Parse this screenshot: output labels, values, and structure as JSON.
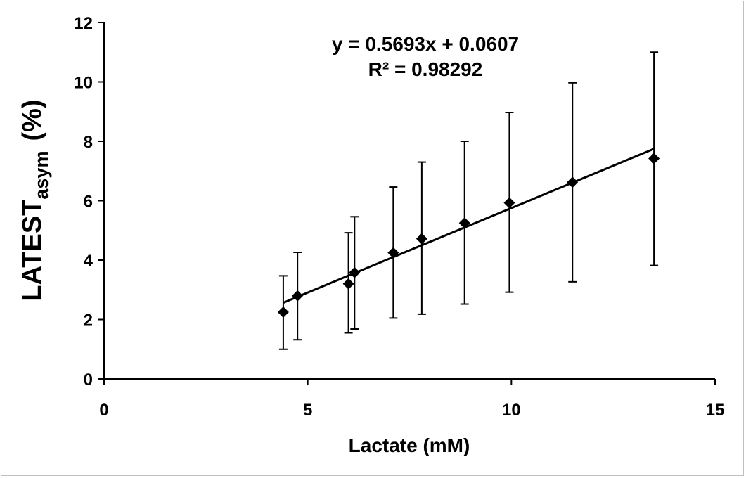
{
  "chart_data": {
    "type": "scatter",
    "xlabel": "Lactate (mM)",
    "ylabel": {
      "main": "LATEST",
      "subscript": "asym",
      "suffix": "(%)"
    },
    "xlim": [
      0,
      15
    ],
    "ylim": [
      0,
      12
    ],
    "x_ticks": [
      0,
      5,
      10,
      15
    ],
    "x_tick_labels": [
      "0",
      "5",
      "10",
      "15"
    ],
    "y_ticks": [
      0,
      2,
      4,
      6,
      8,
      10,
      12
    ],
    "y_tick_labels": [
      "0",
      "2",
      "4",
      "6",
      "8",
      "10",
      "12"
    ],
    "grid": false,
    "legend": "none",
    "marker": "diamond",
    "marker_color": "#000000",
    "series": [
      {
        "x": [
          4.4,
          4.75,
          6.0,
          6.15,
          7.1,
          7.8,
          8.85,
          9.95,
          11.5,
          13.5
        ],
        "y": [
          2.25,
          2.8,
          3.2,
          3.58,
          4.25,
          4.72,
          5.25,
          5.93,
          6.62,
          7.42
        ],
        "error_low": [
          1.0,
          1.32,
          1.55,
          1.68,
          2.05,
          2.18,
          2.52,
          2.92,
          3.27,
          3.82
        ],
        "error_high": [
          3.47,
          4.26,
          4.92,
          5.46,
          6.46,
          7.3,
          8.0,
          8.97,
          9.97,
          11.0
        ]
      }
    ],
    "trendline": {
      "type": "linear",
      "slope": 0.5693,
      "intercept": 0.0607,
      "x_range": [
        4.4,
        13.5
      ],
      "equation": "y = 0.5693x + 0.0607",
      "r_squared": "R² = 0.98292"
    }
  }
}
